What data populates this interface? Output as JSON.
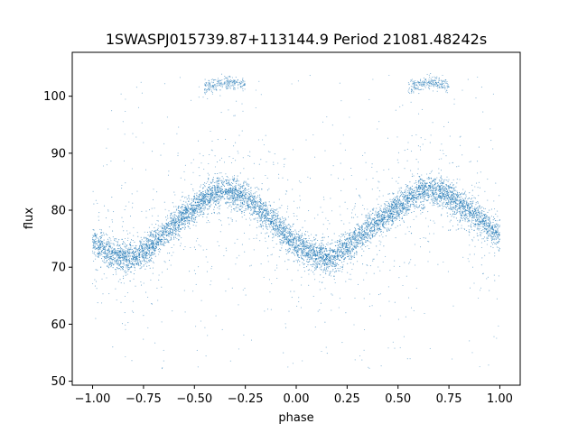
{
  "chart_data": {
    "type": "scatter",
    "title": "1SWASPJ015739.87+113144.9 Period 21081.48242s",
    "xlabel": "phase",
    "ylabel": "flux",
    "xlim": [
      -1.1,
      1.1
    ],
    "ylim": [
      49.3,
      107.7
    ],
    "xticks": [
      -1.0,
      -0.75,
      -0.5,
      -0.25,
      0.0,
      0.25,
      0.5,
      0.75,
      1.0
    ],
    "xtick_labels": [
      "−1.00",
      "−0.75",
      "−0.50",
      "−0.25",
      "0.00",
      "0.25",
      "0.50",
      "0.75",
      "1.00"
    ],
    "yticks": [
      50,
      60,
      70,
      80,
      90,
      100
    ],
    "ytick_labels": [
      "50",
      "60",
      "70",
      "80",
      "90",
      "100"
    ],
    "grid": false,
    "series_color": "#1f77b4",
    "light_curve": {
      "description_of_trend": "folded sinusoidal light curve, two cycles over phase -1 to 1",
      "phase": [
        -1.0,
        -0.9,
        -0.83,
        -0.75,
        -0.6,
        -0.5,
        -0.4,
        -0.35,
        -0.25,
        -0.1,
        0.0,
        0.1,
        0.17,
        0.25,
        0.4,
        0.5,
        0.6,
        0.65,
        0.75,
        0.9,
        1.0
      ],
      "flux": [
        74.5,
        72.0,
        71.5,
        72.5,
        77.5,
        80.5,
        83.0,
        83.5,
        82.5,
        77.5,
        74.0,
        72.0,
        71.5,
        73.5,
        78.0,
        80.5,
        83.0,
        83.5,
        82.5,
        78.5,
        75.5
      ]
    },
    "upper_branch": {
      "phase": [
        -0.45,
        -0.35,
        -0.25,
        0.55,
        0.65,
        0.75
      ],
      "flux": [
        101.5,
        102.5,
        102.0,
        101.5,
        102.5,
        102.0
      ]
    }
  }
}
